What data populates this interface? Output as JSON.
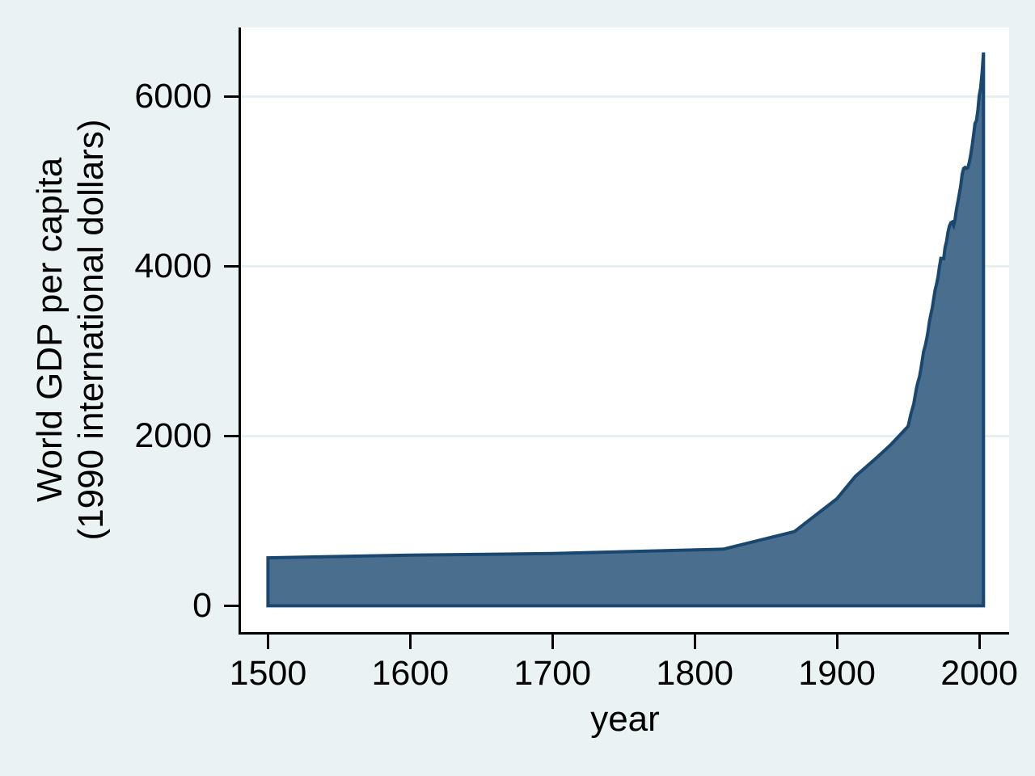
{
  "chart_data": {
    "type": "area",
    "title": "",
    "xlabel": "year",
    "ylabel_line1": "World GDP per capita",
    "ylabel_line2": "(1990 international dollars)",
    "series_name": "World GDP per capita (1990 international dollars)",
    "xlim": [
      1481,
      2021
    ],
    "ylim": [
      -310,
      6810
    ],
    "x_ticks": [
      1500,
      1600,
      1700,
      1800,
      1900,
      2000
    ],
    "x_tick_labels": [
      "1500",
      "1600",
      "1700",
      "1800",
      "1900",
      "2000"
    ],
    "y_ticks": [
      0,
      2000,
      4000,
      6000
    ],
    "y_tick_labels": [
      "0",
      "2000",
      "4000",
      "6000"
    ],
    "y_gridlines": [
      2000,
      4000,
      6000
    ],
    "grid": "horizontal",
    "legend": "none",
    "points": [
      [
        1500,
        565
      ],
      [
        1600,
        596
      ],
      [
        1700,
        615
      ],
      [
        1820,
        667
      ],
      [
        1870,
        873
      ],
      [
        1900,
        1262
      ],
      [
        1913,
        1526
      ],
      [
        1929,
        1760
      ],
      [
        1938,
        1900
      ],
      [
        1950,
        2113
      ],
      [
        1952,
        2260
      ],
      [
        1954,
        2380
      ],
      [
        1955,
        2480
      ],
      [
        1956,
        2570
      ],
      [
        1957,
        2640
      ],
      [
        1958,
        2700
      ],
      [
        1959,
        2790
      ],
      [
        1960,
        2900
      ],
      [
        1961,
        3000
      ],
      [
        1962,
        3060
      ],
      [
        1963,
        3140
      ],
      [
        1964,
        3230
      ],
      [
        1965,
        3350
      ],
      [
        1966,
        3430
      ],
      [
        1967,
        3510
      ],
      [
        1968,
        3620
      ],
      [
        1969,
        3720
      ],
      [
        1970,
        3790
      ],
      [
        1971,
        3870
      ],
      [
        1972,
        3990
      ],
      [
        1973,
        4091
      ],
      [
        1974,
        4090
      ],
      [
        1975,
        4088
      ],
      [
        1976,
        4220
      ],
      [
        1977,
        4290
      ],
      [
        1978,
        4400
      ],
      [
        1979,
        4470
      ],
      [
        1980,
        4510
      ],
      [
        1981,
        4520
      ],
      [
        1982,
        4480
      ],
      [
        1983,
        4550
      ],
      [
        1984,
        4670
      ],
      [
        1985,
        4760
      ],
      [
        1986,
        4850
      ],
      [
        1987,
        4950
      ],
      [
        1988,
        5080
      ],
      [
        1989,
        5150
      ],
      [
        1990,
        5162
      ],
      [
        1991,
        5150
      ],
      [
        1992,
        5160
      ],
      [
        1993,
        5220
      ],
      [
        1994,
        5310
      ],
      [
        1995,
        5420
      ],
      [
        1996,
        5540
      ],
      [
        1997,
        5680
      ],
      [
        1998,
        5709
      ],
      [
        1999,
        5830
      ],
      [
        2000,
        6012
      ],
      [
        2001,
        6100
      ],
      [
        2002,
        6280
      ],
      [
        2003,
        6516
      ]
    ]
  },
  "colors": {
    "background": "#eaf2f3",
    "plot_background": "#ffffff",
    "area_fill": "#4a6f8e",
    "area_stroke": "#1a476f",
    "gridline": "#e6eff1",
    "axis": "#000000",
    "text": "#000000"
  }
}
